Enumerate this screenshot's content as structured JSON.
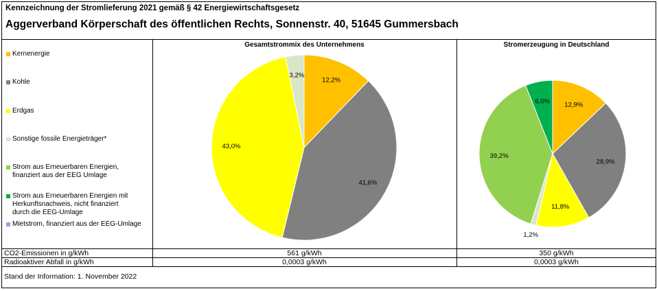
{
  "header": {
    "pre_title": "Kennzeichnung der Stromlieferung 2021 gemäß § 42 Energiewirtschaftsgesetz",
    "title": "Aggerverband Körperschaft des öffentlichen Rechts, Sonnenstr. 40, 51645 Gummersbach"
  },
  "legend": [
    {
      "label": "Kernenergie",
      "color": "#FFC000"
    },
    {
      "label": "Kohle",
      "color": "#808080"
    },
    {
      "label": "Erdgas",
      "color": "#FFFF00"
    },
    {
      "label": "Sonstige fossile Energieträger*",
      "color": "#D9E6C8"
    },
    {
      "label": "Strom aus Erneuerbaren Energien, finanziert aus der EEG Umlage",
      "color": "#92D050"
    },
    {
      "label": "Strom aus Erneuerbaren Energien mit Herkunftsnachweis, nicht finanziert durch die EEG-Umlage",
      "color": "#00B050"
    },
    {
      "label": "Mietstrom, finanziert aus der EEG-Umlage",
      "color": "#8EA9DB"
    }
  ],
  "chart_data": [
    {
      "type": "pie",
      "title": "Gesamtstrommix des Unternehmens",
      "series": [
        {
          "name": "Kernenergie",
          "value": 12.2,
          "label": "12,2%",
          "color": "#FFC000"
        },
        {
          "name": "Kohle",
          "value": 41.6,
          "label": "41,6%",
          "color": "#808080"
        },
        {
          "name": "Erdgas",
          "value": 43.0,
          "label": "43,0%",
          "color": "#FFFF00"
        },
        {
          "name": "Sonstige fossile Energieträger*",
          "value": 3.2,
          "label": "3,2%",
          "color": "#D9E6C8"
        }
      ]
    },
    {
      "type": "pie",
      "title": "Stromerzeugung in Deutschland",
      "series": [
        {
          "name": "Kernenergie",
          "value": 12.9,
          "label": "12,9%",
          "color": "#FFC000"
        },
        {
          "name": "Kohle",
          "value": 28.9,
          "label": "28,9%",
          "color": "#808080"
        },
        {
          "name": "Erdgas",
          "value": 11.8,
          "label": "11,8%",
          "color": "#FFFF00"
        },
        {
          "name": "Sonstige fossile Energieträger*",
          "value": 1.2,
          "label": "1,2%",
          "color": "#D9E6C8"
        },
        {
          "name": "Strom aus Erneuerbaren Energien, finanziert aus der EEG Umlage",
          "value": 39.2,
          "label": "39,2%",
          "color": "#92D050"
        },
        {
          "name": "Strom aus Erneuerbaren Energien mit Herkunftsnachweis, nicht finanziert durch die EEG-Umlage",
          "value": 6.0,
          "label": "6,0%",
          "color": "#00B050"
        }
      ]
    }
  ],
  "table": {
    "rows": [
      {
        "label": "CO2-Emissionen in g/kWh",
        "company": "561 g/kWh",
        "germany": "350 g/kWh"
      },
      {
        "label": "Radioaktiver Abfall in g/kWh",
        "company": "0,0003 g/kWh",
        "germany": "0,0003 g/kWh"
      }
    ]
  },
  "footer": "Stand der Information: 1. November 2022"
}
